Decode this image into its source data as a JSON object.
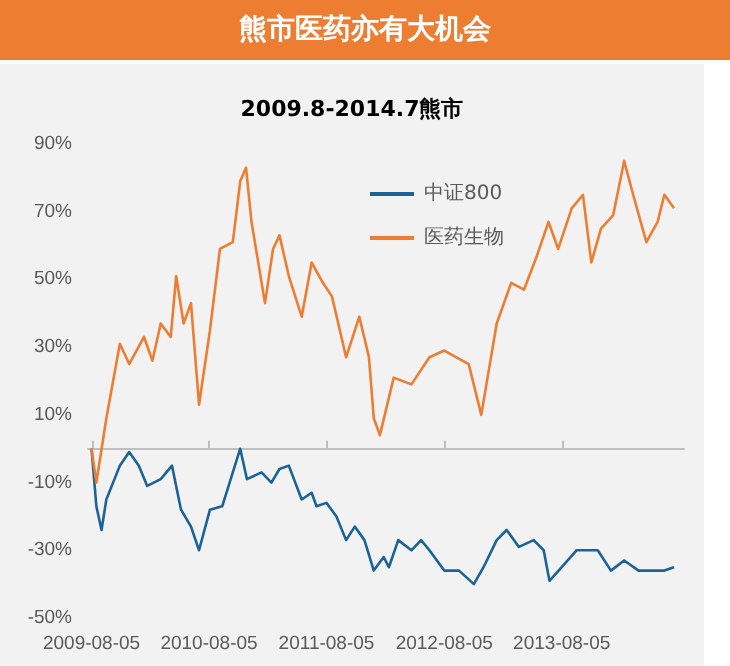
{
  "chart_data": {
    "type": "line",
    "title": "熊市医药亦有大机会",
    "subtitle": "2009.8-2014.7熊市",
    "xlim": [
      "2009-07-25",
      "2014-08-20"
    ],
    "xticks": [
      {
        "value": "2009-08-05",
        "label": "2009-08-05"
      },
      {
        "value": "2010-08-05",
        "label": "2010-08-05"
      },
      {
        "value": "2011-08-05",
        "label": "2011-08-05"
      },
      {
        "value": "2012-08-05",
        "label": "2012-08-05"
      },
      {
        "value": "2013-08-05",
        "label": "2013-08-05"
      }
    ],
    "ylim": [
      -50,
      90
    ],
    "yticks": [
      {
        "value": -50,
        "label": "-50%"
      },
      {
        "value": -30,
        "label": "-30%"
      },
      {
        "value": -10,
        "label": "-10%"
      },
      {
        "value": 10,
        "label": "10%"
      },
      {
        "value": 30,
        "label": "30%"
      },
      {
        "value": 50,
        "label": "50%"
      },
      {
        "value": 70,
        "label": "70%"
      },
      {
        "value": 90,
        "label": "90%"
      }
    ],
    "grid": false,
    "legend": "top right",
    "marker": "none",
    "line_style": "solid",
    "series": [
      {
        "name": "中证800",
        "color": "#1b6396",
        "x": [
          "2009-08-05",
          "2009-08-20",
          "2009-09-05",
          "2009-09-20",
          "2009-11-01",
          "2009-11-30",
          "2009-12-30",
          "2010-01-25",
          "2010-03-08",
          "2010-04-12",
          "2010-05-10",
          "2010-06-10",
          "2010-07-05",
          "2010-08-08",
          "2010-09-15",
          "2010-10-18",
          "2010-11-10",
          "2010-12-01",
          "2011-01-15",
          "2011-02-15",
          "2011-03-12",
          "2011-04-10",
          "2011-05-20",
          "2011-06-20",
          "2011-07-05",
          "2011-08-05",
          "2011-09-05",
          "2011-10-05",
          "2011-11-01",
          "2011-12-01",
          "2011-12-30",
          "2012-01-30",
          "2012-02-15",
          "2012-03-15",
          "2012-04-25",
          "2012-05-25",
          "2012-06-20",
          "2012-08-05",
          "2012-09-20",
          "2012-11-05",
          "2012-12-05",
          "2013-01-15",
          "2013-02-15",
          "2013-03-25",
          "2013-05-10",
          "2013-06-10",
          "2013-06-28",
          "2013-08-05",
          "2013-09-20",
          "2013-10-25",
          "2013-11-25",
          "2014-01-05",
          "2014-02-15",
          "2014-04-01",
          "2014-05-10",
          "2014-06-20",
          "2014-07-20"
        ],
        "values": [
          0,
          -17,
          -24,
          -15,
          -5,
          -1,
          -5,
          -11,
          -9,
          -5,
          -18,
          -23,
          -30,
          -18,
          -17,
          -7,
          0,
          -9,
          -7,
          -10,
          -6,
          -5,
          -15,
          -13,
          -17,
          -16,
          -20,
          -27,
          -23,
          -27,
          -36,
          -32,
          -35,
          -27,
          -30,
          -27,
          -30,
          -36,
          -36,
          -40,
          -35,
          -27,
          -24,
          -29,
          -27,
          -30,
          -39,
          -35,
          -30,
          -30,
          -30,
          -36,
          -33,
          -36,
          -36,
          -36,
          -35
        ]
      },
      {
        "name": "医药生物",
        "color": "#ed7d31",
        "x": [
          "2009-08-05",
          "2009-08-20",
          "2009-09-20",
          "2009-11-01",
          "2009-11-30",
          "2010-01-15",
          "2010-02-10",
          "2010-03-08",
          "2010-04-08",
          "2010-04-25",
          "2010-05-18",
          "2010-06-10",
          "2010-07-05",
          "2010-08-08",
          "2010-09-08",
          "2010-10-18",
          "2010-11-10",
          "2010-11-28",
          "2010-12-15",
          "2011-01-26",
          "2011-02-20",
          "2011-03-12",
          "2011-04-10",
          "2011-05-20",
          "2011-06-20",
          "2011-07-25",
          "2011-08-22",
          "2011-10-05",
          "2011-11-15",
          "2011-12-15",
          "2011-12-30",
          "2012-01-18",
          "2012-03-01",
          "2012-04-25",
          "2012-06-20",
          "2012-08-05",
          "2012-10-20",
          "2012-11-28",
          "2013-01-15",
          "2013-03-01",
          "2013-04-10",
          "2013-05-20",
          "2013-06-25",
          "2013-07-25",
          "2013-09-05",
          "2013-10-10",
          "2013-11-05",
          "2013-12-05",
          "2014-01-12",
          "2014-02-15",
          "2014-03-15",
          "2014-04-25",
          "2014-05-30",
          "2014-06-20",
          "2014-07-20"
        ],
        "values": [
          0,
          -10,
          9,
          31,
          25,
          33,
          26,
          37,
          33,
          51,
          37,
          43,
          13,
          35,
          59,
          61,
          79,
          83,
          67,
          43,
          59,
          63,
          51,
          39,
          55,
          49,
          45,
          27,
          39,
          27,
          9,
          4,
          21,
          19,
          27,
          29,
          25,
          10,
          37,
          49,
          47,
          57,
          67,
          59,
          71,
          75,
          55,
          65,
          69,
          85,
          75,
          61,
          67,
          75,
          71
        ]
      }
    ]
  }
}
